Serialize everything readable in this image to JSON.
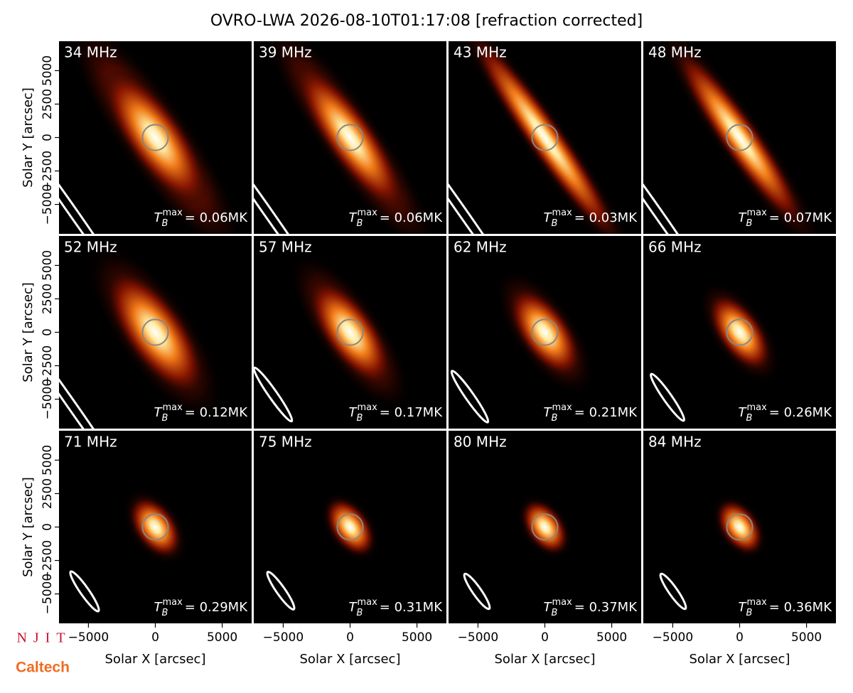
{
  "title": "OVRO-LWA 2026-08-10T01:17:08 [refraction corrected]",
  "axes": {
    "xlabel": "Solar X [arcsec]",
    "ylabel": "Solar Y [arcsec]",
    "xlim": [
      -7200,
      7200
    ],
    "ylim": [
      -7200,
      7200
    ],
    "xticks": [
      {
        "value": -5000,
        "label": "−5000"
      },
      0,
      5000
    ],
    "yticks": [
      {
        "value": -5000,
        "label": "−5000"
      },
      {
        "value": -2500,
        "label": "−2500"
      },
      0,
      2500,
      5000
    ]
  },
  "tb_symbol": {
    "base": "T",
    "sub": "B",
    "sup": "max"
  },
  "chart_data": [
    {
      "type": "image",
      "label": "34 MHz",
      "tb_max": "= 0.06MK"
    },
    {
      "type": "image",
      "label": "39 MHz",
      "tb_max": "= 0.06MK"
    },
    {
      "type": "image",
      "label": "43 MHz",
      "tb_max": "= 0.03MK"
    },
    {
      "type": "image",
      "label": "48 MHz",
      "tb_max": "= 0.07MK"
    },
    {
      "type": "image",
      "label": "52 MHz",
      "tb_max": "= 0.12MK"
    },
    {
      "type": "image",
      "label": "57 MHz",
      "tb_max": "= 0.17MK"
    },
    {
      "type": "image",
      "label": "62 MHz",
      "tb_max": "= 0.21MK"
    },
    {
      "type": "image",
      "label": "66 MHz",
      "tb_max": "= 0.26MK"
    },
    {
      "type": "image",
      "label": "71 MHz",
      "tb_max": "= 0.29MK"
    },
    {
      "type": "image",
      "label": "75 MHz",
      "tb_max": "= 0.31MK"
    },
    {
      "type": "image",
      "label": "80 MHz",
      "tb_max": "= 0.37MK"
    },
    {
      "type": "image",
      "label": "84 MHz",
      "tb_max": "= 0.36MK"
    }
  ],
  "logos": [
    "NJIT",
    "Caltech"
  ]
}
